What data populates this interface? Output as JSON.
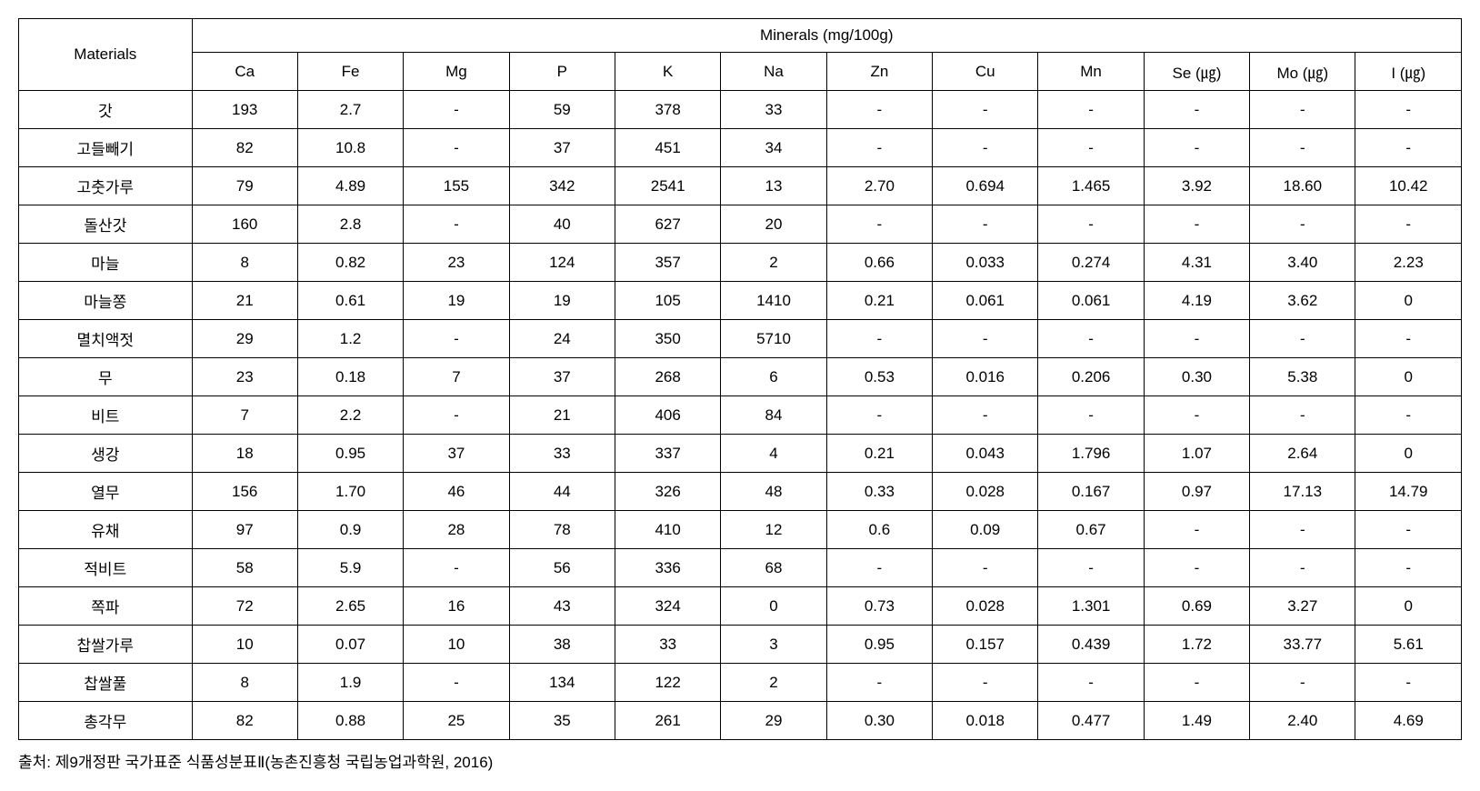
{
  "table": {
    "header": {
      "materials_label": "Materials",
      "minerals_label": "Minerals (mg/100g)",
      "columns": [
        "Ca",
        "Fe",
        "Mg",
        "P",
        "K",
        "Na",
        "Zn",
        "Cu",
        "Mn",
        "Se (㎍)",
        "Mo (㎍)",
        "I (㎍)"
      ]
    },
    "rows": [
      {
        "material": "갓",
        "values": [
          "193",
          "2.7",
          "-",
          "59",
          "378",
          "33",
          "-",
          "-",
          "-",
          "-",
          "-",
          "-"
        ]
      },
      {
        "material": "고들빼기",
        "values": [
          "82",
          "10.8",
          "-",
          "37",
          "451",
          "34",
          "-",
          "-",
          "-",
          "-",
          "-",
          "-"
        ]
      },
      {
        "material": "고춧가루",
        "values": [
          "79",
          "4.89",
          "155",
          "342",
          "2541",
          "13",
          "2.70",
          "0.694",
          "1.465",
          "3.92",
          "18.60",
          "10.42"
        ]
      },
      {
        "material": "돌산갓",
        "values": [
          "160",
          "2.8",
          "-",
          "40",
          "627",
          "20",
          "-",
          "-",
          "-",
          "-",
          "-",
          "-"
        ]
      },
      {
        "material": "마늘",
        "values": [
          "8",
          "0.82",
          "23",
          "124",
          "357",
          "2",
          "0.66",
          "0.033",
          "0.274",
          "4.31",
          "3.40",
          "2.23"
        ]
      },
      {
        "material": "마늘쫑",
        "values": [
          "21",
          "0.61",
          "19",
          "19",
          "105",
          "1410",
          "0.21",
          "0.061",
          "0.061",
          "4.19",
          "3.62",
          "0"
        ]
      },
      {
        "material": "멸치액젓",
        "values": [
          "29",
          "1.2",
          "-",
          "24",
          "350",
          "5710",
          "-",
          "-",
          "-",
          "-",
          "-",
          "-"
        ]
      },
      {
        "material": "무",
        "values": [
          "23",
          "0.18",
          "7",
          "37",
          "268",
          "6",
          "0.53",
          "0.016",
          "0.206",
          "0.30",
          "5.38",
          "0"
        ]
      },
      {
        "material": "비트",
        "values": [
          "7",
          "2.2",
          "-",
          "21",
          "406",
          "84",
          "-",
          "-",
          "-",
          "-",
          "-",
          "-"
        ]
      },
      {
        "material": "생강",
        "values": [
          "18",
          "0.95",
          "37",
          "33",
          "337",
          "4",
          "0.21",
          "0.043",
          "1.796",
          "1.07",
          "2.64",
          "0"
        ]
      },
      {
        "material": "열무",
        "values": [
          "156",
          "1.70",
          "46",
          "44",
          "326",
          "48",
          "0.33",
          "0.028",
          "0.167",
          "0.97",
          "17.13",
          "14.79"
        ]
      },
      {
        "material": "유채",
        "values": [
          "97",
          "0.9",
          "28",
          "78",
          "410",
          "12",
          "0.6",
          "0.09",
          "0.67",
          "-",
          "-",
          "-"
        ]
      },
      {
        "material": "적비트",
        "values": [
          "58",
          "5.9",
          "-",
          "56",
          "336",
          "68",
          "-",
          "-",
          "-",
          "-",
          "-",
          "-"
        ]
      },
      {
        "material": "쪽파",
        "values": [
          "72",
          "2.65",
          "16",
          "43",
          "324",
          "0",
          "0.73",
          "0.028",
          "1.301",
          "0.69",
          "3.27",
          "0"
        ]
      },
      {
        "material": "찹쌀가루",
        "values": [
          "10",
          "0.07",
          "10",
          "38",
          "33",
          "3",
          "0.95",
          "0.157",
          "0.439",
          "1.72",
          "33.77",
          "5.61"
        ]
      },
      {
        "material": "찹쌀풀",
        "values": [
          "8",
          "1.9",
          "-",
          "134",
          "122",
          "2",
          "-",
          "-",
          "-",
          "-",
          "-",
          "-"
        ]
      },
      {
        "material": "총각무",
        "values": [
          "82",
          "0.88",
          "25",
          "35",
          "261",
          "29",
          "0.30",
          "0.018",
          "0.477",
          "1.49",
          "2.40",
          "4.69"
        ]
      }
    ]
  },
  "footnote": "출처: 제9개정판 국가표준 식품성분표Ⅱ(농촌진흥청 국립농업과학원, 2016)",
  "styling": {
    "background_color": "#ffffff",
    "text_color": "#000000",
    "border_color": "#000000",
    "font_size": 17,
    "cell_padding": "8px 4px",
    "materials_col_width": "12%",
    "data_col_width": "7.33%"
  }
}
